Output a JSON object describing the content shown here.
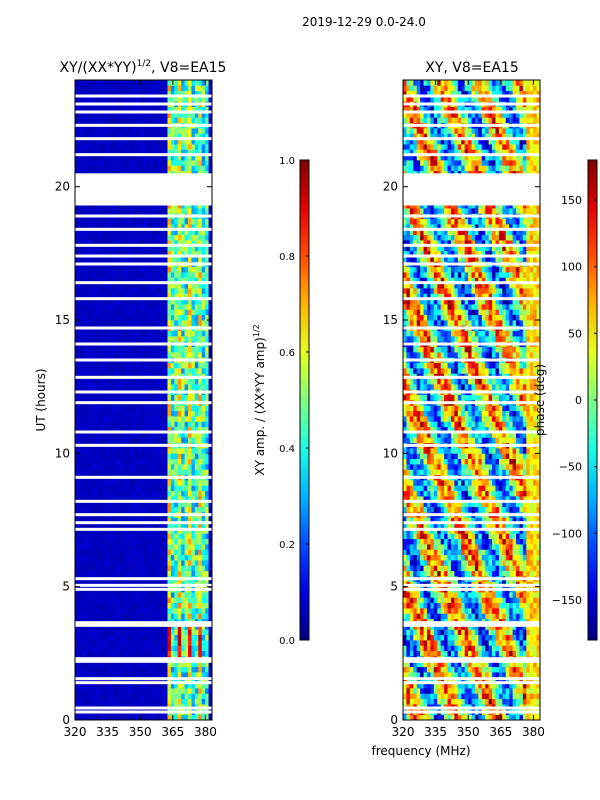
{
  "figure_title": "2019-12-29 0.0-24.0",
  "xlabel_shared": "frequency (MHz)",
  "chart_data": [
    {
      "type": "heatmap",
      "title_prefix": "XY/(XX*YY)",
      "title_exp": "1/2",
      "title_suffix": ", V8=EA15",
      "x_ticks": [
        "320",
        "335",
        "350",
        "365",
        "380"
      ],
      "x_tick_values": [
        320,
        335,
        350,
        365,
        380
      ],
      "xlim": [
        320,
        383
      ],
      "ylabel": "UT (hours)",
      "y_ticks": [
        "0",
        "5",
        "10",
        "15",
        "20"
      ],
      "y_tick_values": [
        0,
        5,
        10,
        15,
        20
      ],
      "ylim": [
        0,
        24
      ],
      "colorbar": {
        "label_prefix": "XY amp. / (XX*YY amp)",
        "label_exp": "1/2",
        "ticks": [
          "0.0",
          "0.2",
          "0.4",
          "0.6",
          "0.8",
          "1.0"
        ],
        "tick_values": [
          0.0,
          0.2,
          0.4,
          0.6,
          0.8,
          1.0
        ],
        "range": [
          0.0,
          1.0
        ]
      },
      "gap_hours": [
        0.3,
        0.45,
        1.4,
        1.55,
        2.2,
        2.3,
        3.55,
        3.65,
        4.9,
        5.05,
        5.3,
        7.15,
        7.4,
        7.7,
        8.2,
        9.1,
        10.3,
        10.8,
        11.9,
        12.3,
        12.85,
        13.5,
        14.1,
        14.7,
        15.8,
        16.4,
        17.1,
        17.4,
        17.8,
        18.4,
        18.9,
        19.35,
        19.6,
        20.0,
        20.4,
        21.2,
        21.8,
        22.3,
        22.8,
        23.1,
        23.4
      ],
      "gap_block_hours": [
        19.3,
        20.5
      ],
      "bright_band_mhz": [
        363,
        382
      ],
      "background_level": 0.05
    },
    {
      "type": "heatmap",
      "title": "XY, V8=EA15",
      "x_ticks": [
        "320",
        "335",
        "350",
        "365",
        "380"
      ],
      "x_tick_values": [
        320,
        335,
        350,
        365,
        380
      ],
      "xlim": [
        320,
        383
      ],
      "y_ticks": [
        "0",
        "5",
        "10",
        "15",
        "20"
      ],
      "y_tick_values": [
        0,
        5,
        10,
        15,
        20
      ],
      "ylim": [
        0,
        24
      ],
      "colorbar": {
        "label": "phase (deg)",
        "ticks": [
          "−150",
          "−100",
          "−50",
          "0",
          "50",
          "100",
          "150"
        ],
        "tick_values": [
          -150,
          -100,
          -50,
          0,
          50,
          100,
          150
        ],
        "range": [
          -180,
          180
        ]
      },
      "gap_hours": [
        0.3,
        0.45,
        1.4,
        1.55,
        2.2,
        2.3,
        3.55,
        3.65,
        4.9,
        5.05,
        5.3,
        7.15,
        7.4,
        7.7,
        8.2,
        9.1,
        10.3,
        10.8,
        11.9,
        12.3,
        12.85,
        13.5,
        14.1,
        14.7,
        15.8,
        16.4,
        17.1,
        17.4,
        17.8,
        18.4,
        18.9,
        19.35,
        19.6,
        20.0,
        20.4,
        21.2,
        21.8,
        22.3,
        22.8,
        23.1,
        23.4
      ],
      "gap_block_hours": [
        19.3,
        20.5
      ]
    }
  ]
}
